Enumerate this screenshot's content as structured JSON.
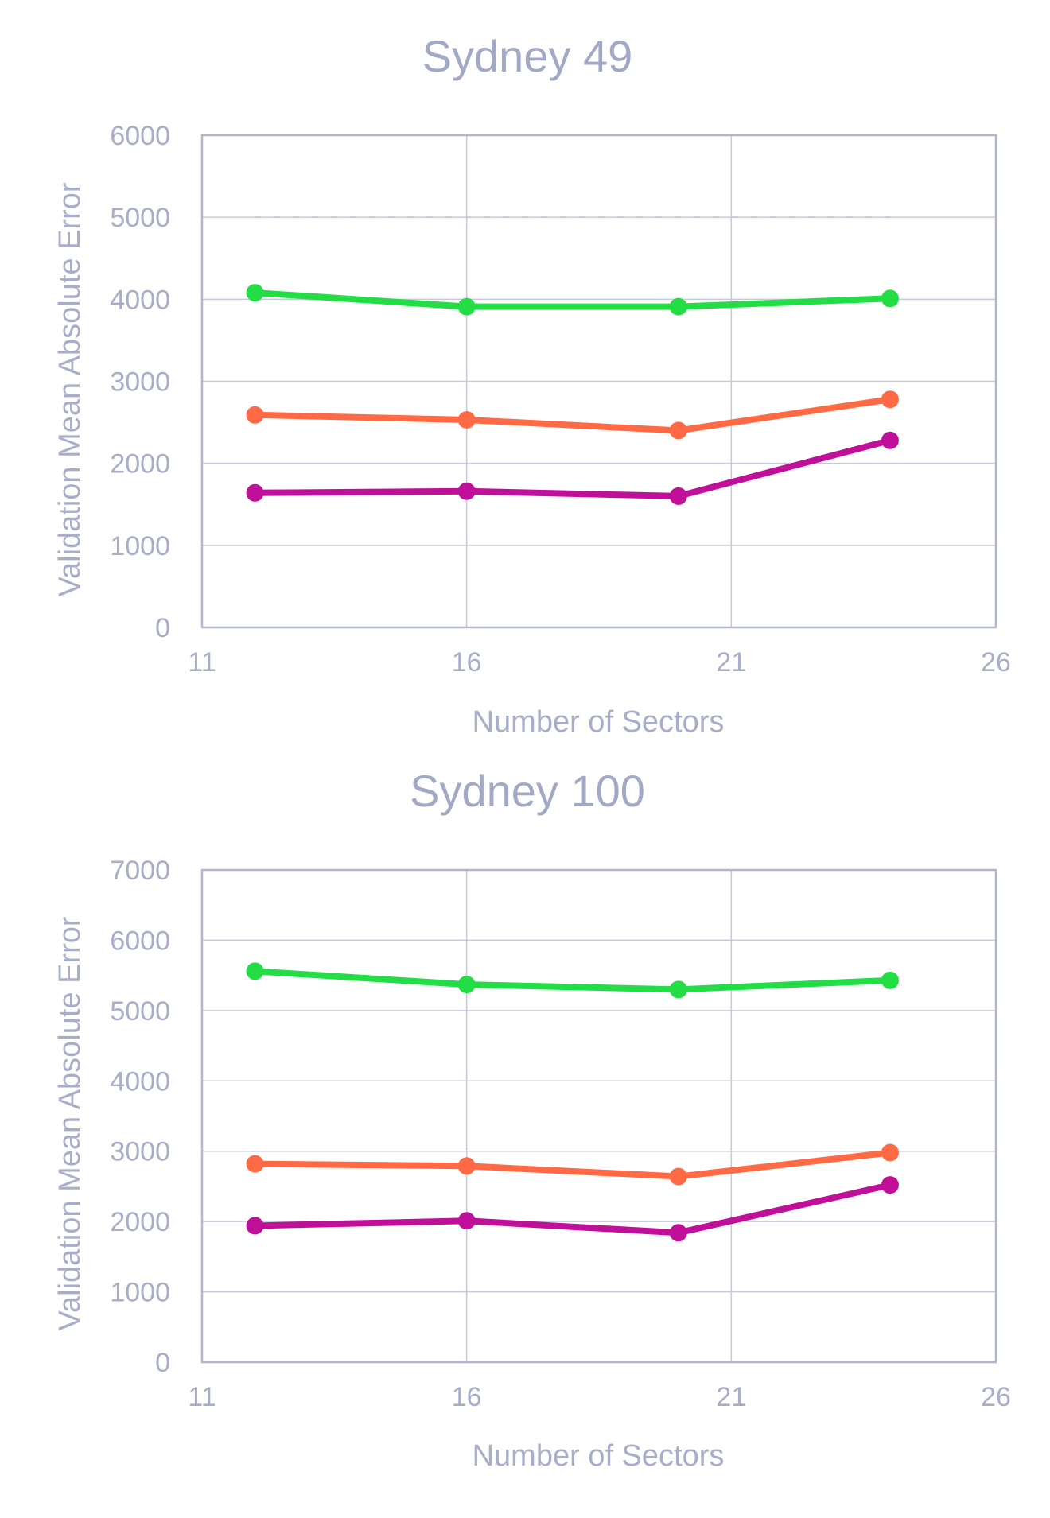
{
  "chart_data": [
    {
      "type": "line",
      "title": "Sydney 49",
      "xlabel": "Number of Sectors",
      "ylabel": "Validation Mean Absolute Error",
      "xlim": [
        11,
        26
      ],
      "ylim": [
        0,
        6000
      ],
      "xticks": [
        11,
        16,
        21,
        26
      ],
      "yticks": [
        0,
        1000,
        2000,
        3000,
        4000,
        5000,
        6000
      ],
      "grid": true,
      "x": [
        12,
        16,
        20,
        24
      ],
      "series": [
        {
          "color": "#22dd44",
          "values": [
            4080,
            3910,
            3910,
            4010
          ]
        },
        {
          "color": "#ff6a45",
          "values": [
            2590,
            2530,
            2400,
            2780
          ]
        },
        {
          "color": "#c0109a",
          "values": [
            1640,
            1660,
            1600,
            2280
          ]
        }
      ],
      "reference_line": {
        "y": 5000,
        "x_range": [
          12,
          24
        ],
        "style": "dashed"
      }
    },
    {
      "type": "line",
      "title": "Sydney 100",
      "xlabel": "Number of Sectors",
      "ylabel": "Validation Mean Absolute Error",
      "xlim": [
        11,
        26
      ],
      "ylim": [
        0,
        7000
      ],
      "xticks": [
        11,
        16,
        21,
        26
      ],
      "yticks": [
        0,
        1000,
        2000,
        3000,
        4000,
        5000,
        6000,
        7000
      ],
      "grid": true,
      "x": [
        12,
        16,
        20,
        24
      ],
      "series": [
        {
          "color": "#22dd44",
          "values": [
            5560,
            5370,
            5300,
            5430
          ]
        },
        {
          "color": "#ff6a45",
          "values": [
            2820,
            2790,
            2640,
            2980
          ]
        },
        {
          "color": "#c0109a",
          "values": [
            1940,
            2010,
            1840,
            2520
          ]
        }
      ]
    }
  ]
}
